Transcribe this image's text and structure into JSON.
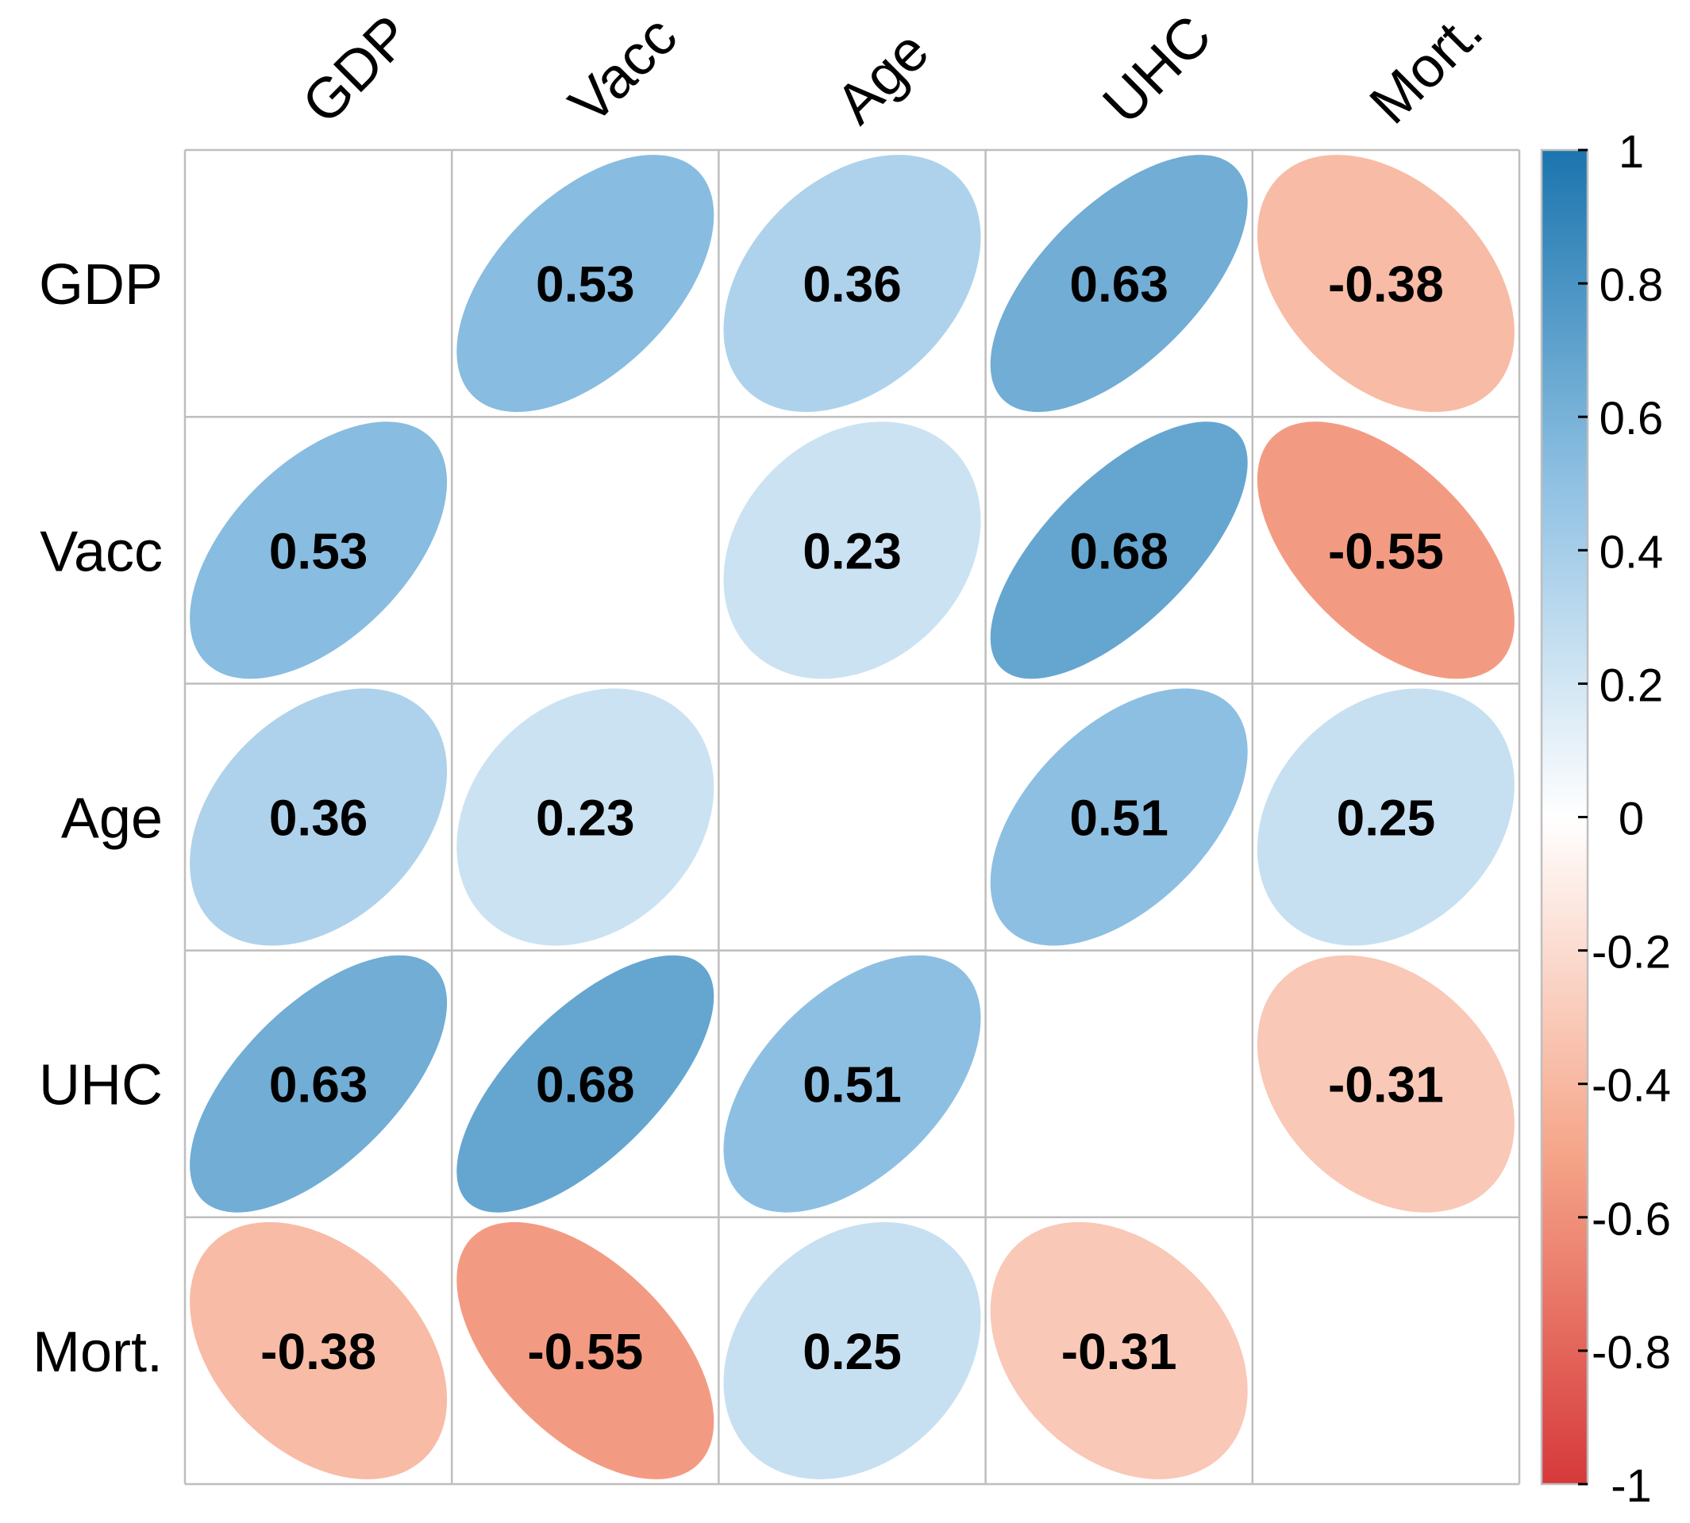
{
  "chart_data": {
    "type": "heatmap",
    "style": "correlation-matrix-ellipses",
    "variables": [
      "GDP",
      "Vacc",
      "Age",
      "UHC",
      "Mort."
    ],
    "matrix": [
      [
        null,
        0.53,
        0.36,
        0.63,
        -0.38
      ],
      [
        0.53,
        null,
        0.23,
        0.68,
        -0.55
      ],
      [
        0.36,
        0.23,
        null,
        0.51,
        0.25
      ],
      [
        0.63,
        0.68,
        0.51,
        null,
        -0.31
      ],
      [
        -0.38,
        -0.55,
        0.25,
        -0.31,
        null
      ]
    ],
    "value_labels": [
      [
        "",
        "0.53",
        "0.36",
        "0.63",
        "-0.38"
      ],
      [
        "0.53",
        "",
        "0.23",
        "0.68",
        "-0.55"
      ],
      [
        "0.36",
        "0.23",
        "",
        "0.51",
        "0.25"
      ],
      [
        "0.63",
        "0.68",
        "0.51",
        "",
        "-0.31"
      ],
      [
        "-0.38",
        "-0.55",
        "0.25",
        "-0.31",
        ""
      ]
    ],
    "colorbar": {
      "range": [
        -1,
        1
      ],
      "ticks": [
        "1",
        "0.8",
        "0.6",
        "0.4",
        "0.2",
        "0",
        "-0.2",
        "-0.4",
        "-0.6",
        "-0.8",
        "-1"
      ],
      "colors": {
        "neg_end": "#D6393A",
        "neg_mid": "#F6A68A",
        "center": "#FFFFFF",
        "pos_mid": "#8FC1E3",
        "pos_end": "#1B75AE"
      }
    },
    "grid": true,
    "legend_position": "right"
  }
}
